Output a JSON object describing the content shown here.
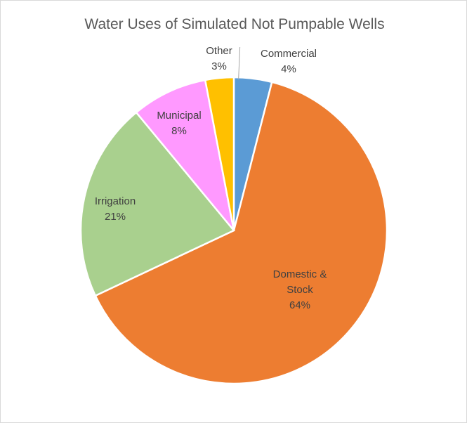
{
  "chart_data": {
    "type": "pie",
    "title": "Water Uses of Simulated Not Pumpable Wells",
    "slices": [
      {
        "label": "Commercial",
        "value": 4,
        "value_label": "4%",
        "color": "#5B9BD5"
      },
      {
        "label": "Domestic &",
        "label2": "Stock",
        "value": 64,
        "value_label": "64%",
        "color": "#ED7D31"
      },
      {
        "label": "Irrigation",
        "value": 21,
        "value_label": "21%",
        "color": "#A9D08E"
      },
      {
        "label": "Municipal",
        "value": 8,
        "value_label": "8%",
        "color": "#FF99FF"
      },
      {
        "label": "Other",
        "value": 3,
        "value_label": "3%",
        "color": "#FFC000"
      }
    ],
    "start_angle_deg": 0,
    "direction": "clockwise",
    "legend": "none"
  }
}
